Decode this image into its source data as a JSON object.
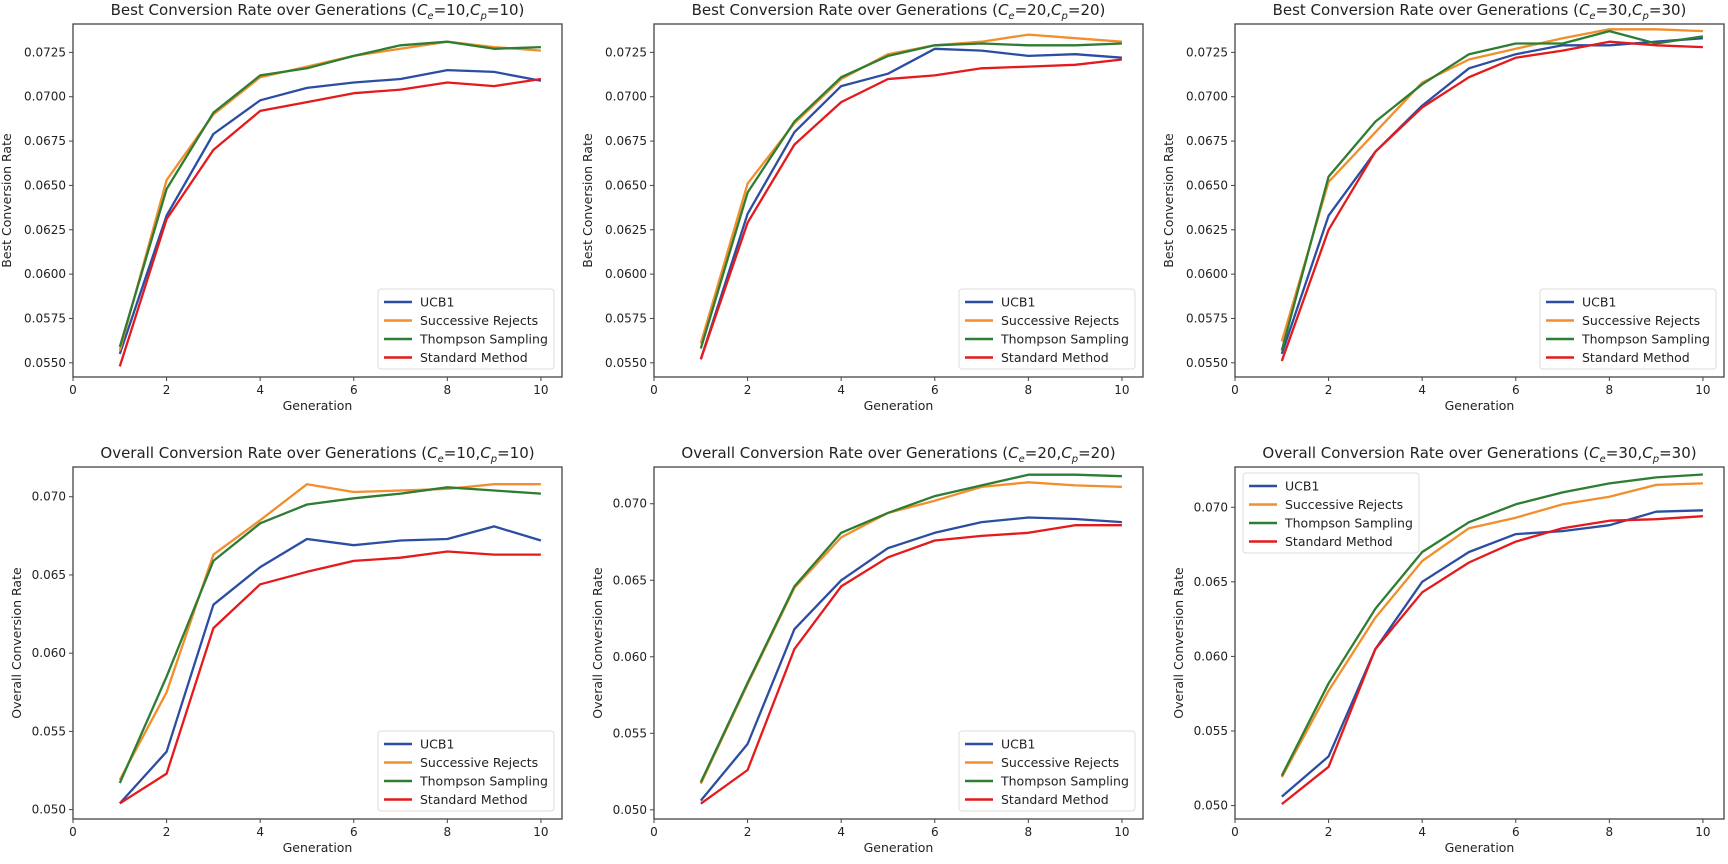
{
  "chart_data": [
    {
      "type": "line",
      "title": "Best Conversion Rate over Generations",
      "Ce": 10,
      "Cp": 10,
      "xlabel": "Generation",
      "ylabel": "Best Conversion Rate",
      "xlim": [
        0,
        10.45
      ],
      "ylim": [
        0.0542,
        0.0741
      ],
      "xticks": [
        "0",
        "2",
        "4",
        "6",
        "8",
        "10"
      ],
      "yticks": [
        "0.0550",
        "0.0575",
        "0.0600",
        "0.0625",
        "0.0650",
        "0.0675",
        "0.0700",
        "0.0725"
      ],
      "legend": "lower-right",
      "grid": false,
      "x": [
        1,
        2,
        3,
        4,
        5,
        6,
        7,
        8,
        9,
        10
      ],
      "series": [
        {
          "name": "UCB1",
          "color": "#2b4ea2",
          "values": [
            0.0555,
            0.0633,
            0.0679,
            0.0698,
            0.0705,
            0.0708,
            0.071,
            0.0715,
            0.0714,
            0.0709
          ]
        },
        {
          "name": "Successive Rejects",
          "color": "#f28e2b",
          "values": [
            0.0557,
            0.0653,
            0.069,
            0.0711,
            0.0717,
            0.0723,
            0.0727,
            0.0731,
            0.0728,
            0.0726
          ]
        },
        {
          "name": "Thompson Sampling",
          "color": "#2e7d32",
          "values": [
            0.0559,
            0.0648,
            0.0691,
            0.0712,
            0.0716,
            0.0723,
            0.0729,
            0.0731,
            0.0727,
            0.0728
          ]
        },
        {
          "name": "Standard Method",
          "color": "#e41a1c",
          "values": [
            0.0548,
            0.0631,
            0.067,
            0.0692,
            0.0697,
            0.0702,
            0.0704,
            0.0708,
            0.0706,
            0.071
          ]
        }
      ]
    },
    {
      "type": "line",
      "title": "Best Conversion Rate over Generations",
      "Ce": 20,
      "Cp": 20,
      "xlabel": "Generation",
      "ylabel": "Best Conversion Rate",
      "xlim": [
        0,
        10.45
      ],
      "ylim": [
        0.0542,
        0.0741
      ],
      "xticks": [
        "0",
        "2",
        "4",
        "6",
        "8",
        "10"
      ],
      "yticks": [
        "0.0550",
        "0.0575",
        "0.0600",
        "0.0625",
        "0.0650",
        "0.0675",
        "0.0700",
        "0.0725"
      ],
      "legend": "lower-right",
      "grid": false,
      "x": [
        1,
        2,
        3,
        4,
        5,
        6,
        7,
        8,
        9,
        10
      ],
      "series": [
        {
          "name": "UCB1",
          "color": "#2b4ea2",
          "values": [
            0.0552,
            0.0634,
            0.068,
            0.0706,
            0.0713,
            0.0727,
            0.0726,
            0.0723,
            0.0724,
            0.0722
          ]
        },
        {
          "name": "Successive Rejects",
          "color": "#f28e2b",
          "values": [
            0.0561,
            0.0651,
            0.0685,
            0.071,
            0.0724,
            0.0729,
            0.0731,
            0.0735,
            0.0733,
            0.0731
          ]
        },
        {
          "name": "Thompson Sampling",
          "color": "#2e7d32",
          "values": [
            0.0558,
            0.0646,
            0.0686,
            0.0711,
            0.0723,
            0.0729,
            0.073,
            0.0729,
            0.0729,
            0.073
          ]
        },
        {
          "name": "Standard Method",
          "color": "#e41a1c",
          "values": [
            0.0552,
            0.0629,
            0.0673,
            0.0697,
            0.071,
            0.0712,
            0.0716,
            0.0717,
            0.0718,
            0.0721
          ]
        }
      ]
    },
    {
      "type": "line",
      "title": "Best Conversion Rate over Generations",
      "Ce": 30,
      "Cp": 30,
      "xlabel": "Generation",
      "ylabel": "Best Conversion Rate",
      "xlim": [
        0,
        10.45
      ],
      "ylim": [
        0.0542,
        0.0741
      ],
      "xticks": [
        "0",
        "2",
        "4",
        "6",
        "8",
        "10"
      ],
      "yticks": [
        "0.0550",
        "0.0575",
        "0.0600",
        "0.0625",
        "0.0650",
        "0.0675",
        "0.0700",
        "0.0725"
      ],
      "legend": "lower-right",
      "grid": false,
      "x": [
        1,
        2,
        3,
        4,
        5,
        6,
        7,
        8,
        9,
        10
      ],
      "series": [
        {
          "name": "UCB1",
          "color": "#2b4ea2",
          "values": [
            0.0555,
            0.0633,
            0.0669,
            0.0695,
            0.0716,
            0.0724,
            0.0729,
            0.0729,
            0.0731,
            0.0733
          ]
        },
        {
          "name": "Successive Rejects",
          "color": "#f28e2b",
          "values": [
            0.0562,
            0.0652,
            0.068,
            0.0708,
            0.0721,
            0.0727,
            0.0733,
            0.0738,
            0.0738,
            0.0737
          ]
        },
        {
          "name": "Thompson Sampling",
          "color": "#2e7d32",
          "values": [
            0.0557,
            0.0655,
            0.0686,
            0.0707,
            0.0724,
            0.073,
            0.073,
            0.0737,
            0.073,
            0.0734
          ]
        },
        {
          "name": "Standard Method",
          "color": "#e41a1c",
          "values": [
            0.0551,
            0.0625,
            0.0669,
            0.0694,
            0.0711,
            0.0722,
            0.0726,
            0.0731,
            0.0729,
            0.0728
          ]
        }
      ]
    },
    {
      "type": "line",
      "title": "Overall Conversion Rate over Generations",
      "Ce": 10,
      "Cp": 10,
      "xlabel": "Generation",
      "ylabel": "Overall Conversion Rate",
      "xlim": [
        0,
        10.45
      ],
      "ylim": [
        0.0494,
        0.0719
      ],
      "xticks": [
        "0",
        "2",
        "4",
        "6",
        "8",
        "10"
      ],
      "yticks": [
        "0.050",
        "0.055",
        "0.060",
        "0.065",
        "0.070"
      ],
      "legend": "lower-right",
      "grid": false,
      "x": [
        1,
        2,
        3,
        4,
        5,
        6,
        7,
        8,
        9,
        10
      ],
      "series": [
        {
          "name": "UCB1",
          "color": "#2b4ea2",
          "values": [
            0.0504,
            0.0537,
            0.0631,
            0.0655,
            0.0673,
            0.0669,
            0.0672,
            0.0673,
            0.0681,
            0.0672
          ]
        },
        {
          "name": "Successive Rejects",
          "color": "#f28e2b",
          "values": [
            0.0519,
            0.0575,
            0.0663,
            0.0685,
            0.0708,
            0.0703,
            0.0704,
            0.0705,
            0.0708,
            0.0708
          ]
        },
        {
          "name": "Thompson Sampling",
          "color": "#2e7d32",
          "values": [
            0.0517,
            0.0585,
            0.0659,
            0.0683,
            0.0695,
            0.0699,
            0.0702,
            0.0706,
            0.0704,
            0.0702
          ]
        },
        {
          "name": "Standard Method",
          "color": "#e41a1c",
          "values": [
            0.0504,
            0.0523,
            0.0616,
            0.0644,
            0.0652,
            0.0659,
            0.0661,
            0.0665,
            0.0663,
            0.0663
          ]
        }
      ]
    },
    {
      "type": "line",
      "title": "Overall Conversion Rate over Generations",
      "Ce": 20,
      "Cp": 20,
      "xlabel": "Generation",
      "ylabel": "Overall Conversion Rate",
      "xlim": [
        0,
        10.45
      ],
      "ylim": [
        0.0494,
        0.0724
      ],
      "xticks": [
        "0",
        "2",
        "4",
        "6",
        "8",
        "10"
      ],
      "yticks": [
        "0.050",
        "0.055",
        "0.060",
        "0.065",
        "0.070"
      ],
      "legend": "lower-right",
      "grid": false,
      "x": [
        1,
        2,
        3,
        4,
        5,
        6,
        7,
        8,
        9,
        10
      ],
      "series": [
        {
          "name": "UCB1",
          "color": "#2b4ea2",
          "values": [
            0.0506,
            0.0543,
            0.0618,
            0.065,
            0.0671,
            0.0681,
            0.0688,
            0.0691,
            0.069,
            0.0688
          ]
        },
        {
          "name": "Successive Rejects",
          "color": "#f28e2b",
          "values": [
            0.0517,
            0.0582,
            0.0645,
            0.0678,
            0.0694,
            0.0702,
            0.0711,
            0.0714,
            0.0712,
            0.0711
          ]
        },
        {
          "name": "Thompson Sampling",
          "color": "#2e7d32",
          "values": [
            0.0518,
            0.0583,
            0.0646,
            0.0681,
            0.0694,
            0.0705,
            0.0712,
            0.0719,
            0.0719,
            0.0718
          ]
        },
        {
          "name": "Standard Method",
          "color": "#e41a1c",
          "values": [
            0.0504,
            0.0526,
            0.0605,
            0.0646,
            0.0665,
            0.0676,
            0.0679,
            0.0681,
            0.0686,
            0.0686
          ]
        }
      ]
    },
    {
      "type": "line",
      "title": "Overall Conversion Rate over Generations",
      "Ce": 30,
      "Cp": 30,
      "xlabel": "Generation",
      "ylabel": "Overall Conversion Rate",
      "xlim": [
        0,
        10.45
      ],
      "ylim": [
        0.0491,
        0.0727
      ],
      "xticks": [
        "0",
        "2",
        "4",
        "6",
        "8",
        "10"
      ],
      "yticks": [
        "0.050",
        "0.055",
        "0.060",
        "0.065",
        "0.070"
      ],
      "legend": "upper-left",
      "grid": false,
      "x": [
        1,
        2,
        3,
        4,
        5,
        6,
        7,
        8,
        9,
        10
      ],
      "series": [
        {
          "name": "UCB1",
          "color": "#2b4ea2",
          "values": [
            0.0506,
            0.0533,
            0.0605,
            0.065,
            0.067,
            0.0682,
            0.0684,
            0.0688,
            0.0697,
            0.0698
          ]
        },
        {
          "name": "Successive Rejects",
          "color": "#f28e2b",
          "values": [
            0.0519,
            0.0577,
            0.0626,
            0.0664,
            0.0686,
            0.0693,
            0.0702,
            0.0707,
            0.0715,
            0.0716
          ]
        },
        {
          "name": "Thompson Sampling",
          "color": "#2e7d32",
          "values": [
            0.052,
            0.0582,
            0.0632,
            0.067,
            0.069,
            0.0702,
            0.071,
            0.0716,
            0.072,
            0.0722
          ]
        },
        {
          "name": "Standard Method",
          "color": "#e41a1c",
          "values": [
            0.0501,
            0.0526,
            0.0605,
            0.0643,
            0.0663,
            0.0677,
            0.0686,
            0.0691,
            0.0692,
            0.0694
          ]
        }
      ]
    }
  ]
}
